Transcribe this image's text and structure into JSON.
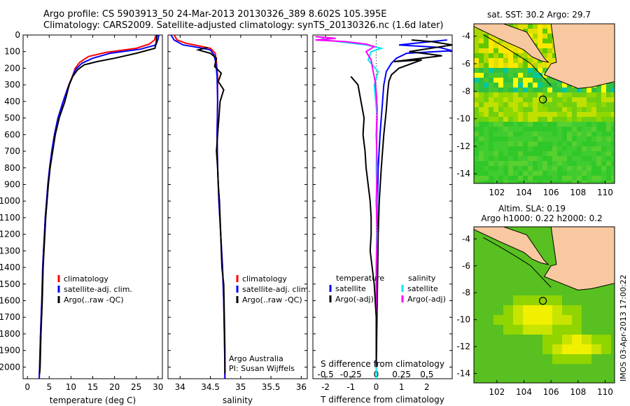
{
  "header": {
    "line1": "Argo profile: CS 5903913_50 24-Mar-2013 20130326_389 8.602S 105.395E",
    "line2": "Climatology: CARS2009. Satellite-adjusted climatology: synTS_20130326.nc (1.6d later)"
  },
  "timestamp": "IMOS 03-Apr-2013 17:00:22",
  "credit": {
    "line1": "Argo Australia",
    "line2": "PI: Susan Wijffels"
  },
  "colors": {
    "clim": "#ff0000",
    "sat": "#0000ff",
    "argo": "#000000",
    "sat_s": "#00e5ee",
    "argo_s": "#ff00ff"
  },
  "chart_data": [
    {
      "type": "line",
      "name": "temperature",
      "xlabel": "temperature (deg C)",
      "ylabel": "depth",
      "xlim": [
        -1,
        31
      ],
      "ylim": [
        2070,
        0
      ],
      "xticks": [
        0,
        5,
        10,
        15,
        20,
        25,
        30
      ],
      "yticks": [
        0,
        100,
        200,
        300,
        400,
        500,
        600,
        700,
        800,
        900,
        1000,
        1100,
        1200,
        1300,
        1400,
        1500,
        1600,
        1700,
        1800,
        1900,
        2000
      ],
      "legend": [
        "climatology",
        "satellite-adj. clim.",
        "Argo(..raw -QC)"
      ],
      "series": [
        {
          "name": "climatology",
          "points": [
            [
              29.5,
              0
            ],
            [
              29.2,
              30
            ],
            [
              28,
              55
            ],
            [
              25,
              80
            ],
            [
              18,
              105
            ],
            [
              14,
              130
            ],
            [
              12,
              165
            ],
            [
              11,
              200
            ],
            [
              10.3,
              250
            ],
            [
              9.5,
              300
            ],
            [
              8.2,
              400
            ],
            [
              7,
              500
            ],
            [
              6.2,
              600
            ],
            [
              5.6,
              700
            ],
            [
              5.1,
              800
            ],
            [
              4.7,
              900
            ],
            [
              4.4,
              1000
            ],
            [
              4.1,
              1100
            ],
            [
              3.9,
              1200
            ],
            [
              3.7,
              1300
            ],
            [
              3.5,
              1400
            ],
            [
              3.3,
              1600
            ],
            [
              3,
              1800
            ],
            [
              2.8,
              2000
            ],
            [
              2.7,
              2070
            ]
          ]
        },
        {
          "name": "satellite-adj. clim.",
          "points": [
            [
              30.2,
              0
            ],
            [
              30,
              25
            ],
            [
              29.5,
              60
            ],
            [
              26,
              85
            ],
            [
              19,
              110
            ],
            [
              15,
              140
            ],
            [
              12.5,
              170
            ],
            [
              11,
              210
            ],
            [
              10.2,
              260
            ],
            [
              9.4,
              310
            ],
            [
              8.2,
              400
            ],
            [
              7,
              500
            ],
            [
              6.2,
              600
            ],
            [
              5.6,
              700
            ],
            [
              5.1,
              800
            ],
            [
              4.7,
              900
            ],
            [
              4.4,
              1000
            ],
            [
              4.1,
              1100
            ],
            [
              3.9,
              1200
            ],
            [
              3.7,
              1300
            ],
            [
              3.5,
              1400
            ],
            [
              3.3,
              1600
            ],
            [
              3,
              1800
            ],
            [
              2.8,
              2000
            ],
            [
              2.7,
              2070
            ]
          ]
        },
        {
          "name": "Argo(..raw -QC)",
          "points": [
            [
              29.7,
              0
            ],
            [
              29.6,
              40
            ],
            [
              29.3,
              80
            ],
            [
              25,
              110
            ],
            [
              20,
              140
            ],
            [
              16,
              160
            ],
            [
              13,
              180
            ],
            [
              11.5,
              210
            ],
            [
              10.4,
              250
            ],
            [
              9.6,
              300
            ],
            [
              8.6,
              400
            ],
            [
              7.3,
              500
            ],
            [
              6.4,
              600
            ],
            [
              5.8,
              700
            ],
            [
              5.2,
              800
            ],
            [
              4.8,
              900
            ],
            [
              4.5,
              1000
            ],
            [
              4.2,
              1100
            ],
            [
              4,
              1200
            ],
            [
              3.8,
              1300
            ],
            [
              3.6,
              1400
            ],
            [
              3.4,
              1600
            ],
            [
              3.1,
              1800
            ],
            [
              2.9,
              2000
            ],
            [
              2.8,
              2040
            ]
          ]
        }
      ]
    },
    {
      "type": "line",
      "name": "salinity",
      "xlabel": "salinity",
      "xlim": [
        33.8,
        36.1
      ],
      "ylim": [
        2070,
        0
      ],
      "xticks": [
        34,
        34.5,
        35,
        35.5,
        36
      ],
      "xticklabels": [
        "34",
        "34.5",
        "35",
        "35.5",
        "36"
      ],
      "legend": [
        "climatology",
        "satellite-adj. clim.",
        "Argo(..raw -QC)"
      ],
      "series": [
        {
          "name": "climatology",
          "points": [
            [
              33.9,
              0
            ],
            [
              33.95,
              30
            ],
            [
              34.1,
              50
            ],
            [
              34.3,
              65
            ],
            [
              34.5,
              80
            ],
            [
              34.58,
              110
            ],
            [
              34.6,
              160
            ],
            [
              34.62,
              250
            ],
            [
              34.62,
              400
            ],
            [
              34.61,
              600
            ],
            [
              34.62,
              800
            ],
            [
              34.64,
              1000
            ],
            [
              34.67,
              1200
            ],
            [
              34.7,
              1400
            ],
            [
              34.72,
              1600
            ],
            [
              34.73,
              1800
            ],
            [
              34.74,
              2000
            ],
            [
              34.74,
              2070
            ]
          ]
        },
        {
          "name": "satellite-adj. clim.",
          "points": [
            [
              33.85,
              0
            ],
            [
              33.9,
              30
            ],
            [
              34.05,
              60
            ],
            [
              34.3,
              75
            ],
            [
              34.5,
              90
            ],
            [
              34.56,
              120
            ],
            [
              34.59,
              170
            ],
            [
              34.61,
              250
            ],
            [
              34.62,
              400
            ],
            [
              34.61,
              600
            ],
            [
              34.62,
              800
            ],
            [
              34.64,
              1000
            ],
            [
              34.67,
              1200
            ],
            [
              34.7,
              1400
            ],
            [
              34.72,
              1600
            ],
            [
              34.73,
              1800
            ],
            [
              34.74,
              2000
            ],
            [
              34.74,
              2070
            ]
          ]
        },
        {
          "name": "Argo(..raw -QC)",
          "points": [
            [
              34.45,
              75
            ],
            [
              34.3,
              90
            ],
            [
              34.5,
              110
            ],
            [
              34.6,
              140
            ],
            [
              34.57,
              190
            ],
            [
              34.68,
              230
            ],
            [
              34.63,
              280
            ],
            [
              34.72,
              330
            ],
            [
              34.66,
              400
            ],
            [
              34.64,
              500
            ],
            [
              34.62,
              600
            ],
            [
              34.6,
              700
            ],
            [
              34.62,
              800
            ],
            [
              34.63,
              900
            ],
            [
              34.65,
              1000
            ],
            [
              34.67,
              1200
            ],
            [
              34.69,
              1400
            ],
            [
              34.72,
              1500
            ],
            [
              34.73,
              1700
            ],
            [
              34.74,
              1900
            ],
            [
              34.74,
              2040
            ]
          ]
        }
      ]
    },
    {
      "type": "line",
      "name": "difference",
      "xlabel": "T difference from climatology",
      "xlabel_top": "S difference from climatology",
      "xlim": [
        -2.5,
        3
      ],
      "ylim": [
        2070,
        0
      ],
      "xticks": [
        -2,
        -1,
        0,
        1,
        2
      ],
      "xticks_top": [
        -0.5,
        -0.25,
        0,
        0.25,
        0.5
      ],
      "xticklabels_top": [
        "-0.5",
        "-0.25",
        "0",
        "0.25",
        "0.5"
      ],
      "legend_titles": [
        "temperature",
        "salinity"
      ],
      "legend": [
        "satellite",
        "Argo(-adj)",
        "satellite",
        "Argo(-adj)"
      ],
      "series": [
        {
          "name": "T satellite",
          "points": [
            [
              2.8,
              30
            ],
            [
              1.5,
              50
            ],
            [
              0.9,
              60
            ],
            [
              2.5,
              75
            ],
            [
              3,
              95
            ],
            [
              1.2,
              110
            ],
            [
              0.8,
              140
            ],
            [
              0.6,
              170
            ],
            [
              0.4,
              220
            ],
            [
              0.3,
              300
            ],
            [
              0.25,
              400
            ],
            [
              0.15,
              600
            ],
            [
              0.08,
              800
            ],
            [
              0.05,
              1000
            ],
            [
              0.03,
              1400
            ],
            [
              0,
              2000
            ],
            [
              0,
              2070
            ]
          ]
        },
        {
          "name": "T Argo(-adj)",
          "points": [
            [
              1.4,
              30
            ],
            [
              2.2,
              40
            ],
            [
              3,
              60
            ],
            [
              1.3,
              100
            ],
            [
              2.6,
              125
            ],
            [
              0.7,
              160
            ],
            [
              1.8,
              150
            ],
            [
              0.9,
              200
            ],
            [
              0.6,
              240
            ],
            [
              0.5,
              280
            ],
            [
              0.45,
              350
            ],
            [
              0.4,
              450
            ],
            [
              0.3,
              600
            ],
            [
              0.2,
              800
            ],
            [
              0.12,
              1000
            ],
            [
              0.08,
              1200
            ],
            [
              0.06,
              1400
            ],
            [
              0.04,
              1600
            ],
            [
              0.02,
              1800
            ],
            [
              0,
              2000
            ]
          ]
        },
        {
          "name": "S satellite",
          "points": [
            [
              -0.55,
              10
            ],
            [
              -0.5,
              30
            ],
            [
              -0.3,
              45
            ],
            [
              -0.1,
              60
            ],
            [
              0.05,
              80
            ],
            [
              -0.05,
              100
            ],
            [
              -0.08,
              150
            ],
            [
              0.02,
              220
            ],
            [
              -0.02,
              300
            ],
            [
              0.01,
              500
            ],
            [
              0,
              800
            ],
            [
              0.01,
              1000
            ],
            [
              0,
              1400
            ],
            [
              0,
              2000
            ],
            [
              0,
              2070
            ]
          ]
        },
        {
          "name": "S Argo(-adj)",
          "points": [
            [
              -0.6,
              10
            ],
            [
              -0.4,
              20
            ],
            [
              -0.6,
              30
            ],
            [
              -0.3,
              40
            ],
            [
              -0.1,
              55
            ],
            [
              -0.02,
              70
            ],
            [
              -0.1,
              100
            ],
            [
              -0.05,
              150
            ],
            [
              -0.03,
              220
            ],
            [
              -0.01,
              280
            ],
            [
              0,
              350
            ],
            [
              0.01,
              450
            ],
            [
              0,
              600
            ],
            [
              0.01,
              800
            ],
            [
              0,
              1000
            ],
            [
              0.01,
              1200
            ],
            [
              0,
              1400
            ],
            [
              0,
              2000
            ]
          ]
        },
        {
          "name": "S Argo black",
          "points": [
            [
              -0.25,
              250
            ],
            [
              -0.18,
              300
            ],
            [
              -0.15,
              400
            ],
            [
              -0.12,
              500
            ],
            [
              -0.13,
              600
            ],
            [
              -0.11,
              700
            ],
            [
              -0.1,
              800
            ],
            [
              -0.08,
              900
            ],
            [
              -0.06,
              1000
            ],
            [
              -0.05,
              1100
            ],
            [
              -0.05,
              1200
            ],
            [
              -0.06,
              1300
            ],
            [
              -0.04,
              1400
            ],
            [
              -0.02,
              1500
            ],
            [
              -0.01,
              1600
            ],
            [
              0,
              1700
            ],
            [
              0,
              1800
            ],
            [
              0,
              1900
            ],
            [
              0,
              2000
            ]
          ]
        }
      ]
    },
    {
      "type": "heatmap",
      "name": "sst-map",
      "title": "sat. SST: 30.2  Argo: 29.7",
      "xlim": [
        100.3,
        110.7
      ],
      "ylim": [
        -14.7,
        -3.1
      ],
      "xticks": [
        102,
        104,
        106,
        108,
        110
      ],
      "yticks": [
        -4,
        -6,
        -8,
        -10,
        -12,
        -14
      ],
      "marker": [
        105.4,
        -8.6
      ]
    },
    {
      "type": "heatmap",
      "name": "sla-map",
      "title_line1": "Altim. SLA: 0.19",
      "title_line2": "Argo h1000: 0.22  h2000: 0.2",
      "xlim": [
        100.3,
        110.7
      ],
      "ylim": [
        -14.7,
        -3.1
      ],
      "xticks": [
        102,
        104,
        106,
        108,
        110
      ],
      "yticks": [
        -4,
        -6,
        -8,
        -10,
        -12,
        -14
      ],
      "marker": [
        105.4,
        -8.6
      ]
    }
  ]
}
